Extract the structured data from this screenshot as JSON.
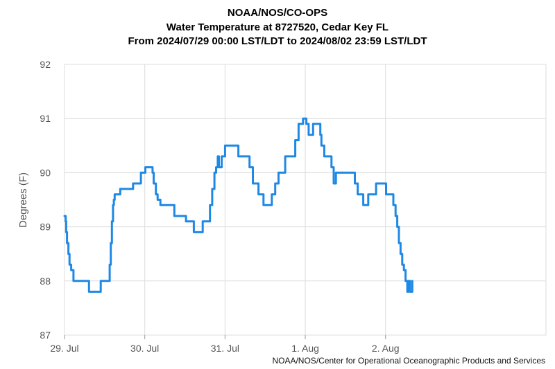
{
  "title_lines": [
    "NOAA/NOS/CO-OPS",
    "Water Temperature at 8727520, Cedar Key FL",
    "From 2024/07/29 00:00 LST/LDT to 2024/08/02 23:59 LST/LDT"
  ],
  "credit": "NOAA/NOS/Center for Operational Oceanographic Products and Services",
  "chart_data": {
    "type": "line",
    "title": "Water Temperature at 8727520, Cedar Key FL",
    "xlabel": "",
    "ylabel": "Degrees (F)",
    "ylim": [
      87,
      92
    ],
    "xlim": [
      "2024-07-29 00:00",
      "2024-08-03 23:59"
    ],
    "x_ticks": [
      {
        "x": "2024-07-29 00:00",
        "label": "29. Jul"
      },
      {
        "x": "2024-07-30 00:00",
        "label": "30. Jul"
      },
      {
        "x": "2024-07-31 00:00",
        "label": "31. Jul"
      },
      {
        "x": "2024-08-01 00:00",
        "label": "1. Aug"
      },
      {
        "x": "2024-08-02 00:00",
        "label": "2. Aug"
      }
    ],
    "y_ticks": [
      87,
      88,
      89,
      90,
      91,
      92
    ],
    "grid": true,
    "colors": {
      "line": "#1e88e5",
      "grid": "#dcdcdc",
      "axis_text": "#555555"
    },
    "series": [
      {
        "x": [
          "2024-07-29 00:00",
          "2024-07-29 00:20",
          "2024-07-29 00:30",
          "2024-07-29 00:45",
          "2024-07-29 01:10",
          "2024-07-29 01:30",
          "2024-07-29 02:00",
          "2024-07-29 02:40",
          "2024-07-29 04:50",
          "2024-07-29 07:20",
          "2024-07-29 07:40",
          "2024-07-29 10:50",
          "2024-07-29 11:00",
          "2024-07-29 12:40",
          "2024-07-29 13:30",
          "2024-07-29 13:50",
          "2024-07-29 14:10",
          "2024-07-29 14:30",
          "2024-07-29 14:45",
          "2024-07-29 15:00",
          "2024-07-29 15:15",
          "2024-07-29 15:30",
          "2024-07-29 15:50",
          "2024-07-29 16:10",
          "2024-07-29 16:40",
          "2024-07-29 20:30",
          "2024-07-29 22:50",
          "2024-07-30 00:10",
          "2024-07-30 02:20",
          "2024-07-30 02:40",
          "2024-07-30 03:20",
          "2024-07-30 03:50",
          "2024-07-30 04:40",
          "2024-07-30 08:50",
          "2024-07-30 12:20",
          "2024-07-30 14:40",
          "2024-07-30 17:20",
          "2024-07-30 19:30",
          "2024-07-30 20:10",
          "2024-07-30 20:50",
          "2024-07-30 21:20",
          "2024-07-30 21:50",
          "2024-07-30 22:10",
          "2024-07-30 23:00",
          "2024-07-31 00:00",
          "2024-07-31 00:30",
          "2024-07-31 01:00",
          "2024-07-31 04:00",
          "2024-07-31 07:20",
          "2024-07-31 08:20",
          "2024-07-31 10:00",
          "2024-07-31 11:30",
          "2024-07-31 12:30",
          "2024-07-31 13:10",
          "2024-07-31 13:40",
          "2024-07-31 14:00",
          "2024-07-31 15:00",
          "2024-07-31 16:00",
          "2024-07-31 18:00",
          "2024-07-31 21:00",
          "2024-07-31 22:00",
          "2024-07-31 23:20",
          "2024-08-01 00:20",
          "2024-08-01 01:00",
          "2024-08-01 01:40",
          "2024-08-01 02:20",
          "2024-08-01 03:00",
          "2024-08-01 04:30",
          "2024-08-01 04:50",
          "2024-08-01 05:40",
          "2024-08-01 07:50",
          "2024-08-01 08:30",
          "2024-08-01 09:10",
          "2024-08-01 09:40",
          "2024-08-01 10:00",
          "2024-08-01 14:20",
          "2024-08-01 14:50",
          "2024-08-01 15:40",
          "2024-08-01 17:20",
          "2024-08-01 18:50",
          "2024-08-01 21:10",
          "2024-08-02 00:10",
          "2024-08-02 02:20",
          "2024-08-02 03:00",
          "2024-08-02 03:30",
          "2024-08-02 04:00",
          "2024-08-02 04:30",
          "2024-08-02 05:00",
          "2024-08-02 05:30",
          "2024-08-02 06:00",
          "2024-08-02 06:30",
          "2024-08-02 06:50",
          "2024-08-02 07:10",
          "2024-08-02 07:20",
          "2024-08-02 08:00"
        ],
        "values": [
          89.2,
          89.1,
          88.9,
          88.7,
          88.5,
          88.3,
          88.2,
          88.0,
          88.0,
          87.8,
          87.8,
          88.0,
          88.0,
          88.0,
          88.3,
          88.7,
          89.1,
          89.4,
          89.5,
          89.6,
          89.6,
          89.6,
          89.6,
          89.6,
          89.7,
          89.8,
          90.0,
          90.1,
          90.0,
          89.8,
          89.6,
          89.5,
          89.4,
          89.2,
          89.1,
          88.9,
          89.1,
          89.4,
          89.7,
          90.0,
          90.1,
          90.3,
          90.1,
          90.3,
          90.5,
          90.5,
          90.5,
          90.3,
          90.1,
          89.8,
          89.6,
          89.4,
          89.4,
          89.4,
          89.4,
          89.6,
          89.8,
          90.0,
          90.3,
          90.6,
          90.9,
          91.0,
          90.9,
          90.7,
          90.7,
          90.9,
          90.9,
          90.7,
          90.5,
          90.3,
          90.1,
          89.8,
          90.0,
          90.0,
          90.0,
          90.0,
          89.8,
          89.6,
          89.4,
          89.6,
          89.8,
          89.6,
          89.4,
          89.2,
          89.0,
          88.7,
          88.5,
          88.3,
          88.2,
          88.0,
          87.8,
          88.0,
          88.0,
          87.8,
          88.0
        ]
      }
    ]
  }
}
